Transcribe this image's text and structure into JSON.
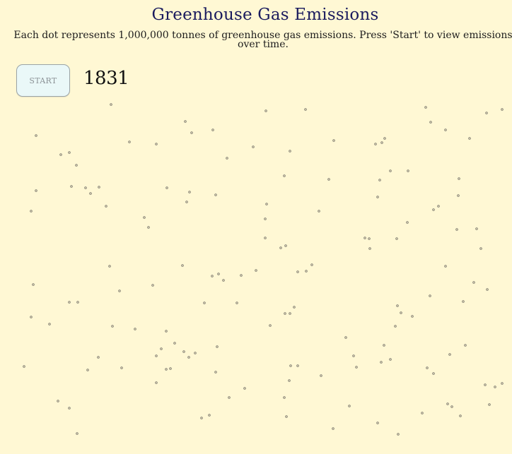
{
  "header": {
    "title": "Greenhouse Gas Emissions",
    "subtitle": "Each dot represents 1,000,000 tonnes of greenhouse gas emissions. Press 'Start' to view emissions over time."
  },
  "controls": {
    "start_label": "START",
    "year": "1831"
  },
  "colors": {
    "background": "#fff8d4",
    "title": "#1a1b5e",
    "dot_stroke": "#7a776c",
    "button_bg": "#eaf8f8"
  }
}
